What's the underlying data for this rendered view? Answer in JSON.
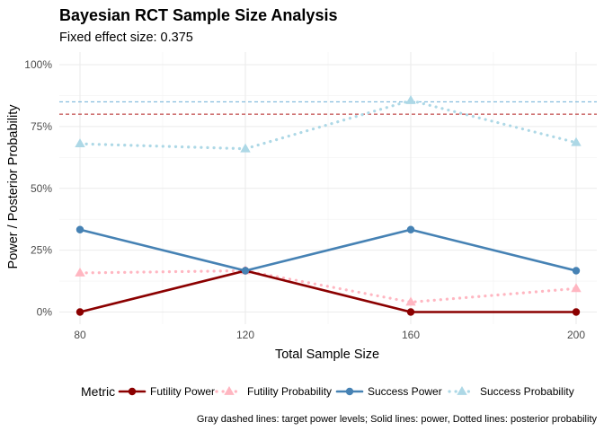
{
  "chart_data": {
    "type": "line",
    "title": "Bayesian RCT Sample Size Analysis",
    "subtitle": "Fixed effect size: 0.375",
    "xlabel": "Total Sample Size",
    "ylabel": "Power / Posterior Probability",
    "x": [
      80,
      120,
      160,
      200
    ],
    "x_ticks": [
      "80",
      "120",
      "160",
      "200"
    ],
    "y_ticks": [
      "0%",
      "25%",
      "50%",
      "75%",
      "100%"
    ],
    "xlim": [
      75,
      205
    ],
    "ylim": [
      0,
      1
    ],
    "grid": true,
    "legend_title": "Metric",
    "legend_position": "bottom",
    "series": [
      {
        "name": "Futility Power",
        "values": [
          0,
          0.167,
          0,
          0
        ],
        "color": "#8B0000",
        "line": "solid",
        "marker": "circle"
      },
      {
        "name": "Futility Probability",
        "values": [
          0.158,
          0.167,
          0.04,
          0.095
        ],
        "color": "#FFB6C1",
        "line": "dotted",
        "marker": "triangle"
      },
      {
        "name": "Success Power",
        "values": [
          0.333,
          0.167,
          0.333,
          0.167
        ],
        "color": "#4682B4",
        "line": "solid",
        "marker": "circle"
      },
      {
        "name": "Success Probability",
        "values": [
          0.68,
          0.66,
          0.855,
          0.685
        ],
        "color": "#ADD8E6",
        "line": "dotted",
        "marker": "triangle"
      }
    ],
    "reference_lines": [
      {
        "y": 0.85,
        "color": "#6BAED6",
        "line": "dashed"
      },
      {
        "y": 0.8,
        "color": "#B22222",
        "line": "dashed"
      }
    ],
    "caption": "Gray dashed lines: target power levels; Solid lines: power, Dotted lines: posterior probability"
  }
}
